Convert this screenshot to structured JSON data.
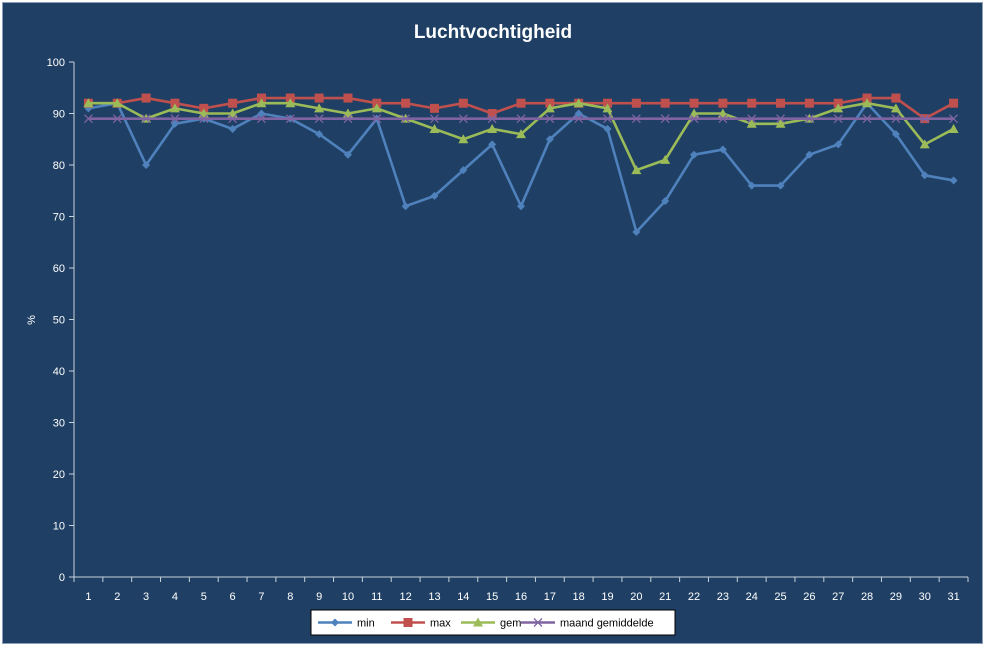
{
  "chart_data": {
    "type": "line",
    "title": "Luchtvochtigheid",
    "xlabel": "",
    "ylabel": "%",
    "ylim": [
      0,
      100
    ],
    "yticks": [
      0,
      10,
      20,
      30,
      40,
      50,
      60,
      70,
      80,
      90,
      100
    ],
    "categories": [
      "1",
      "2",
      "3",
      "4",
      "5",
      "6",
      "7",
      "8",
      "9",
      "10",
      "11",
      "12",
      "13",
      "14",
      "15",
      "16",
      "17",
      "18",
      "19",
      "20",
      "21",
      "22",
      "23",
      "24",
      "25",
      "26",
      "27",
      "28",
      "29",
      "30",
      "31"
    ],
    "grid": false,
    "legend_position": "bottom",
    "series": [
      {
        "name": "min",
        "color": "#4f81bd",
        "marker": "diamond",
        "values": [
          91,
          92,
          80,
          88,
          89,
          87,
          90,
          89,
          86,
          82,
          89,
          72,
          74,
          79,
          84,
          72,
          85,
          90,
          87,
          67,
          73,
          82,
          83,
          76,
          76,
          82,
          84,
          92,
          86,
          78,
          77
        ]
      },
      {
        "name": "max",
        "color": "#c0504d",
        "marker": "square",
        "values": [
          92,
          92,
          93,
          92,
          91,
          92,
          93,
          93,
          93,
          93,
          92,
          92,
          91,
          92,
          90,
          92,
          92,
          92,
          92,
          92,
          92,
          92,
          92,
          92,
          92,
          92,
          92,
          93,
          93,
          89,
          92
        ]
      },
      {
        "name": "gem",
        "color": "#9bbb59",
        "marker": "triangle",
        "values": [
          92,
          92,
          89,
          91,
          90,
          90,
          92,
          92,
          91,
          90,
          91,
          89,
          87,
          85,
          87,
          86,
          91,
          92,
          91,
          79,
          81,
          90,
          90,
          88,
          88,
          89,
          91,
          92,
          91,
          84,
          87
        ]
      },
      {
        "name": "maand gemiddelde",
        "color": "#8064a2",
        "marker": "x",
        "values": [
          89,
          89,
          89,
          89,
          89,
          89,
          89,
          89,
          89,
          89,
          89,
          89,
          89,
          89,
          89,
          89,
          89,
          89,
          89,
          89,
          89,
          89,
          89,
          89,
          89,
          89,
          89,
          89,
          89,
          89,
          89
        ]
      }
    ]
  }
}
